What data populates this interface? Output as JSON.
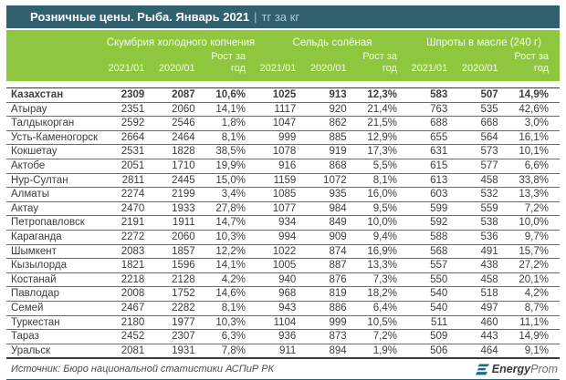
{
  "title": {
    "main": "Розничные цены. Рыба. Январь 2021",
    "separator": "|",
    "unit": "тг за кг"
  },
  "table": {
    "groups": [
      {
        "label": "Скумбрия холодного копчения"
      },
      {
        "label": "Сельдь солёная"
      },
      {
        "label": "Шпроты в масле (240 г)"
      }
    ],
    "subheaders": [
      "2021/01",
      "2020/01",
      "Рост за год"
    ],
    "rows": [
      {
        "region": "Казахстан",
        "bold": true,
        "values": [
          "2309",
          "2087",
          "10,6%",
          "1025",
          "913",
          "12,3%",
          "583",
          "507",
          "14,9%"
        ]
      },
      {
        "region": "Атырау",
        "values": [
          "2351",
          "2060",
          "14,1%",
          "1117",
          "920",
          "21,4%",
          "763",
          "535",
          "42,6%"
        ]
      },
      {
        "region": "Талдыкорган",
        "values": [
          "2592",
          "2546",
          "1,8%",
          "1047",
          "862",
          "21,5%",
          "688",
          "668",
          "3,0%"
        ]
      },
      {
        "region": "Усть-Каменогорск",
        "values": [
          "2664",
          "2464",
          "8,1%",
          "999",
          "885",
          "12,9%",
          "655",
          "564",
          "16,1%"
        ]
      },
      {
        "region": "Кокшетау",
        "values": [
          "2531",
          "1828",
          "38,5%",
          "1078",
          "919",
          "17,3%",
          "631",
          "573",
          "10,1%"
        ]
      },
      {
        "region": "Актобе",
        "values": [
          "2051",
          "1710",
          "19,9%",
          "916",
          "868",
          "5,5%",
          "615",
          "577",
          "6,6%"
        ]
      },
      {
        "region": "Нур-Султан",
        "values": [
          "2811",
          "2445",
          "15,0%",
          "1159",
          "1072",
          "8,1%",
          "613",
          "458",
          "33,8%"
        ]
      },
      {
        "region": "Алматы",
        "values": [
          "2274",
          "2199",
          "3,4%",
          "1085",
          "935",
          "16,0%",
          "603",
          "532",
          "13,3%"
        ]
      },
      {
        "region": "Актау",
        "values": [
          "2470",
          "1933",
          "27,8%",
          "1077",
          "984",
          "9,5%",
          "599",
          "559",
          "7,2%"
        ]
      },
      {
        "region": "Петропавловск",
        "values": [
          "2191",
          "1911",
          "14,7%",
          "934",
          "849",
          "10,0%",
          "592",
          "538",
          "10,0%"
        ]
      },
      {
        "region": "Караганда",
        "values": [
          "2272",
          "2060",
          "10,3%",
          "994",
          "909",
          "9,4%",
          "588",
          "536",
          "9,7%"
        ]
      },
      {
        "region": "Шымкент",
        "values": [
          "2083",
          "1857",
          "12,2%",
          "1022",
          "874",
          "16,9%",
          "568",
          "491",
          "15,7%"
        ]
      },
      {
        "region": "Кызылорда",
        "values": [
          "1821",
          "1596",
          "14,1%",
          "1005",
          "887",
          "13,3%",
          "557",
          "438",
          "27,2%"
        ]
      },
      {
        "region": "Костанай",
        "values": [
          "2218",
          "2128",
          "4,2%",
          "940",
          "876",
          "7,3%",
          "550",
          "458",
          "20,1%"
        ]
      },
      {
        "region": "Павлодар",
        "values": [
          "2008",
          "1752",
          "14,6%",
          "968",
          "819",
          "18,2%",
          "540",
          "518",
          "4,2%"
        ]
      },
      {
        "region": "Семей",
        "values": [
          "2467",
          "2282",
          "8,1%",
          "943",
          "886",
          "6,4%",
          "540",
          "497",
          "8,7%"
        ]
      },
      {
        "region": "Туркестан",
        "values": [
          "2180",
          "1977",
          "10,3%",
          "1104",
          "999",
          "10,5%",
          "511",
          "460",
          "11,1%"
        ]
      },
      {
        "region": "Тараз",
        "values": [
          "2452",
          "2307",
          "6,3%",
          "936",
          "873",
          "7,2%",
          "509",
          "443",
          "14,9%"
        ]
      },
      {
        "region": "Уральск",
        "values": [
          "2081",
          "1931",
          "7,8%",
          "911",
          "894",
          "1,9%",
          "506",
          "464",
          "9,1%"
        ]
      }
    ]
  },
  "footer": {
    "source": "Источник: Бюро национальной статистики АСПиР РК",
    "logo_bold": "Energy",
    "logo_rest": "Prom"
  },
  "colors": {
    "teal": "#31606f",
    "green": "#8ec73e",
    "body_text": "#3d3d3d"
  }
}
